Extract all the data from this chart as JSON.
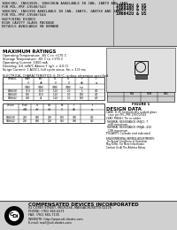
{
  "part_numbers": [
    "1N6638U & US",
    "1N6640U & US",
    "1N6642U & US"
  ],
  "cdi_name": "COMPENSATED DEVICES INCORPORATED",
  "cdi_address": "61 COREY STREET, MELROSE, MASSACHUSETTS 02176",
  "cdi_phone": "PHONE: (781) 665-6271",
  "cdi_fax": "FAX: (781) 665-7135",
  "cdi_website": "WEBSITE: http://www.cdi-diodes.com",
  "cdi_email": "E-mail: mail@cdi-diodes.com",
  "bg_color": "#d0d0d0",
  "white": "#ffffff",
  "black": "#000000",
  "dark_gray": "#555555",
  "light_gray": "#e0e0e0"
}
